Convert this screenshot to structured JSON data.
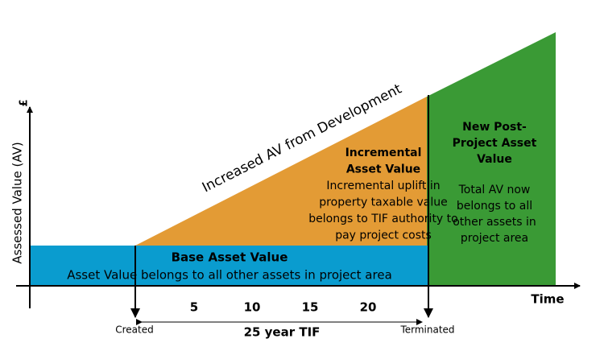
{
  "axes": {
    "y_label": "Assessed Value (AV)",
    "currency": "£",
    "x_label": "Time",
    "ticks": [
      "5",
      "10",
      "15",
      "20"
    ]
  },
  "regions": {
    "base": {
      "title": "Base Asset Value",
      "text": "Asset Value belongs to all other assets in project area"
    },
    "incremental": {
      "title_lines": [
        "Incremental",
        "Asset Value"
      ],
      "text_lines": [
        "Incremental uplift in",
        "property taxable value",
        "belongs to TIF authority to",
        "pay project costs"
      ]
    },
    "post": {
      "title_lines": [
        "New Post-",
        "Project Asset",
        "Value"
      ],
      "text_lines": [
        "Total AV now",
        "belongs to all",
        "other assets in",
        "project area"
      ]
    }
  },
  "diagonal_label": "Increased AV from Development",
  "timeline": {
    "start": "Created",
    "end": "Terminated",
    "duration": "25 year TIF"
  }
}
